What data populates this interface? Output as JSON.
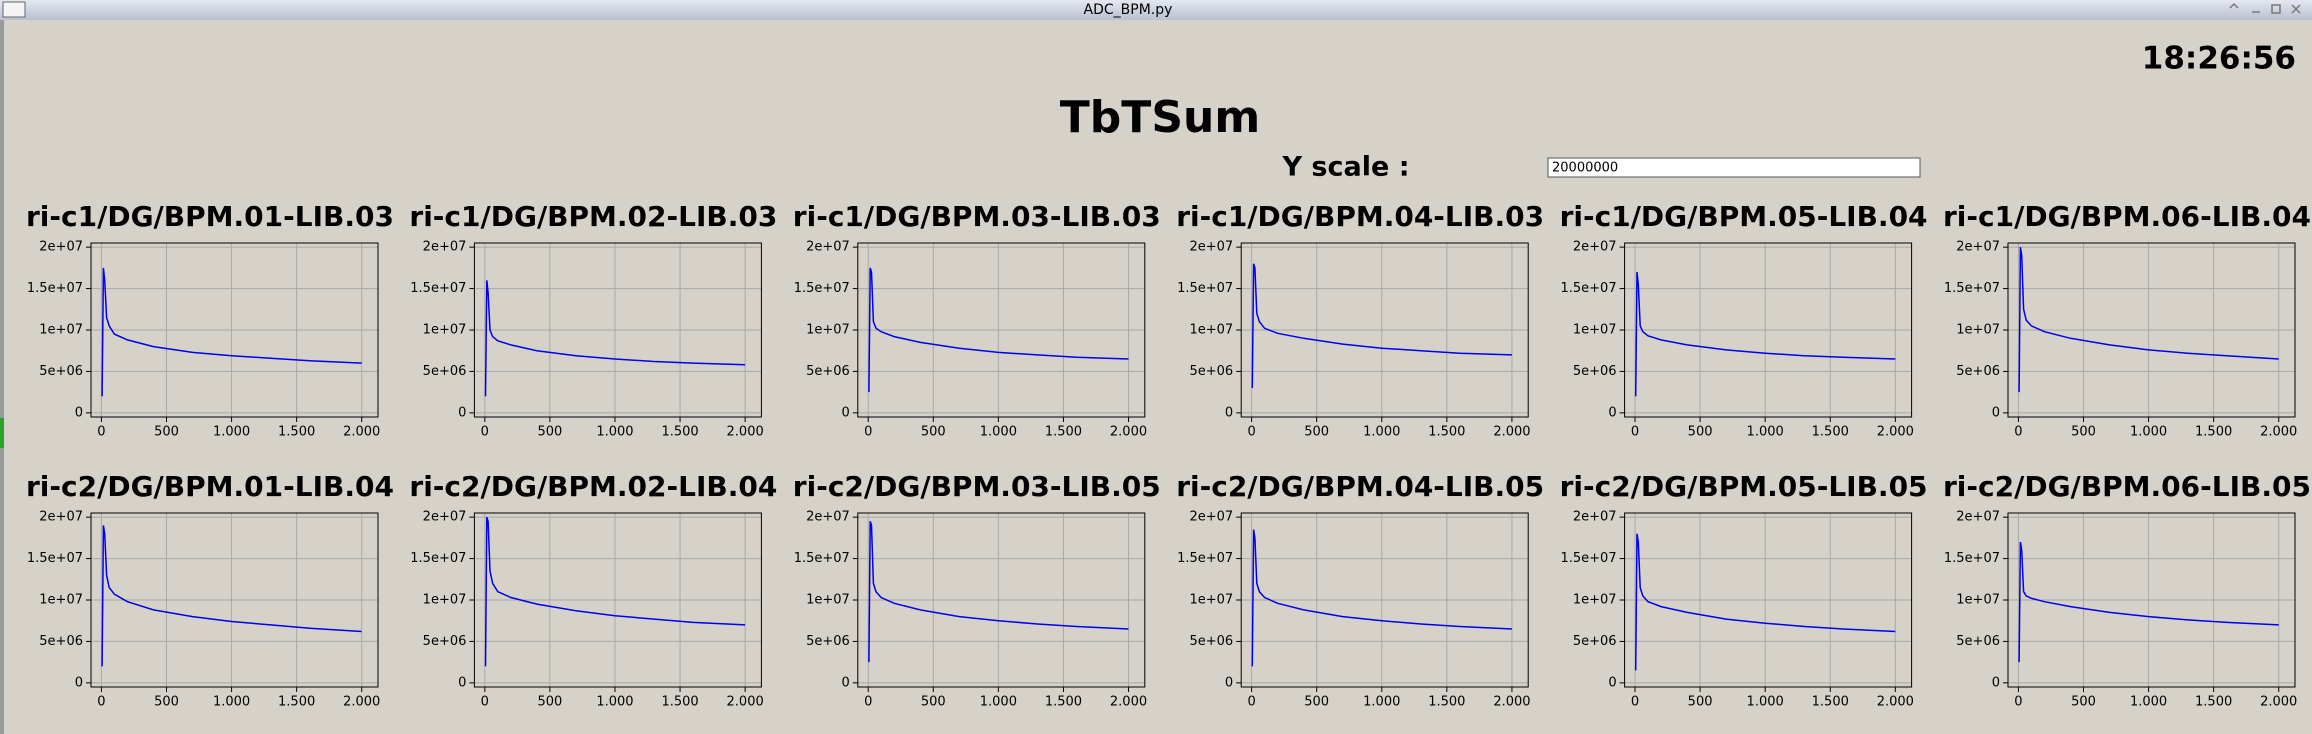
{
  "window": {
    "title": "ADC_BPM.py"
  },
  "clock": "18:26:56",
  "header": {
    "title": "TbTSum",
    "y_scale_label": "Y scale :",
    "y_scale_value": "20000000"
  },
  "chart_data": [
    {
      "type": "line",
      "title": "ri-c1/DG/BPM.01-LIB.03",
      "x": [
        5,
        15,
        25,
        40,
        60,
        100,
        200,
        400,
        700,
        1000,
        1300,
        1600,
        2000
      ],
      "values": [
        2000000,
        17500000,
        16000000,
        11500000,
        10500000,
        9500000,
        8800000,
        8000000,
        7300000,
        6900000,
        6600000,
        6300000,
        6000000
      ],
      "color": "#0000ee",
      "xlim": [
        -80,
        2125
      ],
      "ylim": [
        -500000,
        20500000
      ],
      "xticks": [
        0,
        500,
        {
          "value": 1000,
          "label": "1.000"
        },
        {
          "value": 1500,
          "label": "1.500"
        },
        {
          "value": 2000,
          "label": "2.000"
        }
      ],
      "yticks": [
        0,
        {
          "value": 5000000,
          "label": "5e+06"
        },
        {
          "value": 10000000,
          "label": "1e+07"
        },
        {
          "value": 15000000,
          "label": "1.5e+07"
        },
        {
          "value": 20000000,
          "label": "2e+07"
        }
      ],
      "grid": true
    },
    {
      "type": "line",
      "title": "ri-c1/DG/BPM.02-LIB.03",
      "x": [
        5,
        15,
        25,
        40,
        60,
        100,
        200,
        400,
        700,
        1000,
        1300,
        1600,
        2000
      ],
      "values": [
        2000000,
        16000000,
        14500000,
        10000000,
        9200000,
        8700000,
        8200000,
        7500000,
        6900000,
        6500000,
        6200000,
        6000000,
        5800000
      ],
      "color": "#0000ee",
      "xlim": [
        -80,
        2125
      ],
      "ylim": [
        -500000,
        20500000
      ],
      "xticks": [
        0,
        500,
        {
          "value": 1000,
          "label": "1.000"
        },
        {
          "value": 1500,
          "label": "1.500"
        },
        {
          "value": 2000,
          "label": "2.000"
        }
      ],
      "yticks": [
        0,
        {
          "value": 5000000,
          "label": "5e+06"
        },
        {
          "value": 10000000,
          "label": "1e+07"
        },
        {
          "value": 15000000,
          "label": "1.5e+07"
        },
        {
          "value": 20000000,
          "label": "2e+07"
        }
      ],
      "grid": true
    },
    {
      "type": "line",
      "title": "ri-c1/DG/BPM.03-LIB.03",
      "x": [
        5,
        15,
        25,
        40,
        60,
        100,
        200,
        400,
        700,
        1000,
        1300,
        1600,
        2000
      ],
      "values": [
        2500000,
        17500000,
        17000000,
        11000000,
        10200000,
        9800000,
        9200000,
        8500000,
        7800000,
        7300000,
        7000000,
        6700000,
        6500000
      ],
      "color": "#0000ee",
      "xlim": [
        -80,
        2125
      ],
      "ylim": [
        -500000,
        20500000
      ],
      "xticks": [
        0,
        500,
        {
          "value": 1000,
          "label": "1.000"
        },
        {
          "value": 1500,
          "label": "1.500"
        },
        {
          "value": 2000,
          "label": "2.000"
        }
      ],
      "yticks": [
        0,
        {
          "value": 5000000,
          "label": "5e+06"
        },
        {
          "value": 10000000,
          "label": "1e+07"
        },
        {
          "value": 15000000,
          "label": "1.5e+07"
        },
        {
          "value": 20000000,
          "label": "2e+07"
        }
      ],
      "grid": true
    },
    {
      "type": "line",
      "title": "ri-c1/DG/BPM.04-LIB.03",
      "x": [
        5,
        15,
        25,
        40,
        60,
        100,
        200,
        400,
        700,
        1000,
        1300,
        1600,
        2000
      ],
      "values": [
        3000000,
        18000000,
        17500000,
        12000000,
        11000000,
        10200000,
        9600000,
        9000000,
        8300000,
        7800000,
        7500000,
        7200000,
        7000000
      ],
      "color": "#0000ee",
      "xlim": [
        -80,
        2125
      ],
      "ylim": [
        -500000,
        20500000
      ],
      "xticks": [
        0,
        500,
        {
          "value": 1000,
          "label": "1.000"
        },
        {
          "value": 1500,
          "label": "1.500"
        },
        {
          "value": 2000,
          "label": "2.000"
        }
      ],
      "yticks": [
        0,
        {
          "value": 5000000,
          "label": "5e+06"
        },
        {
          "value": 10000000,
          "label": "1e+07"
        },
        {
          "value": 15000000,
          "label": "1.5e+07"
        },
        {
          "value": 20000000,
          "label": "2e+07"
        }
      ],
      "grid": true
    },
    {
      "type": "line",
      "title": "ri-c1/DG/BPM.05-LIB.04",
      "x": [
        5,
        15,
        25,
        40,
        60,
        100,
        200,
        400,
        700,
        1000,
        1300,
        1600,
        2000
      ],
      "values": [
        2000000,
        17000000,
        15500000,
        10500000,
        9800000,
        9300000,
        8800000,
        8200000,
        7600000,
        7200000,
        6900000,
        6700000,
        6500000
      ],
      "color": "#0000ee",
      "xlim": [
        -80,
        2125
      ],
      "ylim": [
        -500000,
        20500000
      ],
      "xticks": [
        0,
        500,
        {
          "value": 1000,
          "label": "1.000"
        },
        {
          "value": 1500,
          "label": "1.500"
        },
        {
          "value": 2000,
          "label": "2.000"
        }
      ],
      "yticks": [
        0,
        {
          "value": 5000000,
          "label": "5e+06"
        },
        {
          "value": 10000000,
          "label": "1e+07"
        },
        {
          "value": 15000000,
          "label": "1.5e+07"
        },
        {
          "value": 20000000,
          "label": "2e+07"
        }
      ],
      "grid": true
    },
    {
      "type": "line",
      "title": "ri-c1/DG/BPM.06-LIB.04",
      "x": [
        5,
        15,
        25,
        40,
        60,
        100,
        200,
        400,
        700,
        1000,
        1300,
        1600,
        2000
      ],
      "values": [
        2500000,
        20000000,
        19000000,
        12500000,
        11200000,
        10500000,
        9800000,
        9000000,
        8200000,
        7600000,
        7200000,
        6900000,
        6500000
      ],
      "color": "#0000ee",
      "xlim": [
        -80,
        2125
      ],
      "ylim": [
        -500000,
        20500000
      ],
      "xticks": [
        0,
        500,
        {
          "value": 1000,
          "label": "1.000"
        },
        {
          "value": 1500,
          "label": "1.500"
        },
        {
          "value": 2000,
          "label": "2.000"
        }
      ],
      "yticks": [
        0,
        {
          "value": 5000000,
          "label": "5e+06"
        },
        {
          "value": 10000000,
          "label": "1e+07"
        },
        {
          "value": 15000000,
          "label": "1.5e+07"
        },
        {
          "value": 20000000,
          "label": "2e+07"
        }
      ],
      "grid": true
    },
    {
      "type": "line",
      "title": "ri-c2/DG/BPM.01-LIB.04",
      "x": [
        5,
        15,
        25,
        40,
        60,
        100,
        200,
        400,
        700,
        1000,
        1300,
        1600,
        2000
      ],
      "values": [
        2000000,
        19000000,
        18000000,
        13000000,
        11500000,
        10700000,
        9800000,
        8800000,
        8000000,
        7400000,
        7000000,
        6600000,
        6200000
      ],
      "color": "#0000ee",
      "xlim": [
        -80,
        2125
      ],
      "ylim": [
        -500000,
        20500000
      ],
      "xticks": [
        0,
        500,
        {
          "value": 1000,
          "label": "1.000"
        },
        {
          "value": 1500,
          "label": "1.500"
        },
        {
          "value": 2000,
          "label": "2.000"
        }
      ],
      "yticks": [
        0,
        {
          "value": 5000000,
          "label": "5e+06"
        },
        {
          "value": 10000000,
          "label": "1e+07"
        },
        {
          "value": 15000000,
          "label": "1.5e+07"
        },
        {
          "value": 20000000,
          "label": "2e+07"
        }
      ],
      "grid": true
    },
    {
      "type": "line",
      "title": "ri-c2/DG/BPM.02-LIB.04",
      "x": [
        5,
        15,
        25,
        40,
        60,
        100,
        200,
        400,
        700,
        1000,
        1300,
        1600,
        2000
      ],
      "values": [
        2000000,
        20000000,
        19500000,
        13500000,
        12000000,
        11000000,
        10300000,
        9500000,
        8700000,
        8100000,
        7700000,
        7300000,
        7000000
      ],
      "color": "#0000ee",
      "xlim": [
        -80,
        2125
      ],
      "ylim": [
        -500000,
        20500000
      ],
      "xticks": [
        0,
        500,
        {
          "value": 1000,
          "label": "1.000"
        },
        {
          "value": 1500,
          "label": "1.500"
        },
        {
          "value": 2000,
          "label": "2.000"
        }
      ],
      "yticks": [
        0,
        {
          "value": 5000000,
          "label": "5e+06"
        },
        {
          "value": 10000000,
          "label": "1e+07"
        },
        {
          "value": 15000000,
          "label": "1.5e+07"
        },
        {
          "value": 20000000,
          "label": "2e+07"
        }
      ],
      "grid": true
    },
    {
      "type": "line",
      "title": "ri-c2/DG/BPM.03-LIB.05",
      "x": [
        5,
        15,
        25,
        40,
        60,
        100,
        200,
        400,
        700,
        1000,
        1300,
        1600,
        2000
      ],
      "values": [
        2500000,
        19500000,
        19000000,
        12000000,
        11000000,
        10300000,
        9600000,
        8800000,
        8000000,
        7500000,
        7100000,
        6800000,
        6500000
      ],
      "color": "#0000ee",
      "xlim": [
        -80,
        2125
      ],
      "ylim": [
        -500000,
        20500000
      ],
      "xticks": [
        0,
        500,
        {
          "value": 1000,
          "label": "1.000"
        },
        {
          "value": 1500,
          "label": "1.500"
        },
        {
          "value": 2000,
          "label": "2.000"
        }
      ],
      "yticks": [
        0,
        {
          "value": 5000000,
          "label": "5e+06"
        },
        {
          "value": 10000000,
          "label": "1e+07"
        },
        {
          "value": 15000000,
          "label": "1.5e+07"
        },
        {
          "value": 20000000,
          "label": "2e+07"
        }
      ],
      "grid": true
    },
    {
      "type": "line",
      "title": "ri-c2/DG/BPM.04-LIB.05",
      "x": [
        5,
        15,
        25,
        40,
        60,
        100,
        200,
        400,
        700,
        1000,
        1300,
        1600,
        2000
      ],
      "values": [
        2000000,
        18500000,
        17500000,
        12000000,
        11000000,
        10300000,
        9600000,
        8800000,
        8000000,
        7500000,
        7100000,
        6800000,
        6500000
      ],
      "color": "#0000ee",
      "xlim": [
        -80,
        2125
      ],
      "ylim": [
        -500000,
        20500000
      ],
      "xticks": [
        0,
        500,
        {
          "value": 1000,
          "label": "1.000"
        },
        {
          "value": 1500,
          "label": "1.500"
        },
        {
          "value": 2000,
          "label": "2.000"
        }
      ],
      "yticks": [
        0,
        {
          "value": 5000000,
          "label": "5e+06"
        },
        {
          "value": 10000000,
          "label": "1e+07"
        },
        {
          "value": 15000000,
          "label": "1.5e+07"
        },
        {
          "value": 20000000,
          "label": "2e+07"
        }
      ],
      "grid": true
    },
    {
      "type": "line",
      "title": "ri-c2/DG/BPM.05-LIB.05",
      "x": [
        5,
        15,
        25,
        40,
        60,
        100,
        200,
        400,
        700,
        1000,
        1300,
        1600,
        2000
      ],
      "values": [
        1500000,
        18000000,
        17000000,
        11500000,
        10500000,
        9800000,
        9200000,
        8500000,
        7700000,
        7200000,
        6800000,
        6500000,
        6200000
      ],
      "color": "#0000ee",
      "xlim": [
        -80,
        2125
      ],
      "ylim": [
        -500000,
        20500000
      ],
      "xticks": [
        0,
        500,
        {
          "value": 1000,
          "label": "1.000"
        },
        {
          "value": 1500,
          "label": "1.500"
        },
        {
          "value": 2000,
          "label": "2.000"
        }
      ],
      "yticks": [
        0,
        {
          "value": 5000000,
          "label": "5e+06"
        },
        {
          "value": 10000000,
          "label": "1e+07"
        },
        {
          "value": 15000000,
          "label": "1.5e+07"
        },
        {
          "value": 20000000,
          "label": "2e+07"
        }
      ],
      "grid": true
    },
    {
      "type": "line",
      "title": "ri-c2/DG/BPM.06-LIB.05",
      "x": [
        5,
        15,
        25,
        40,
        60,
        100,
        200,
        400,
        700,
        1000,
        1300,
        1600,
        2000
      ],
      "values": [
        2500000,
        17000000,
        16000000,
        11000000,
        10500000,
        10200000,
        9800000,
        9200000,
        8500000,
        8000000,
        7600000,
        7300000,
        7000000
      ],
      "color": "#0000ee",
      "xlim": [
        -80,
        2125
      ],
      "ylim": [
        -500000,
        20500000
      ],
      "xticks": [
        0,
        500,
        {
          "value": 1000,
          "label": "1.000"
        },
        {
          "value": 1500,
          "label": "1.500"
        },
        {
          "value": 2000,
          "label": "2.000"
        }
      ],
      "yticks": [
        0,
        {
          "value": 5000000,
          "label": "5e+06"
        },
        {
          "value": 10000000,
          "label": "1e+07"
        },
        {
          "value": 15000000,
          "label": "1.5e+07"
        },
        {
          "value": 20000000,
          "label": "2e+07"
        }
      ],
      "grid": true
    }
  ]
}
